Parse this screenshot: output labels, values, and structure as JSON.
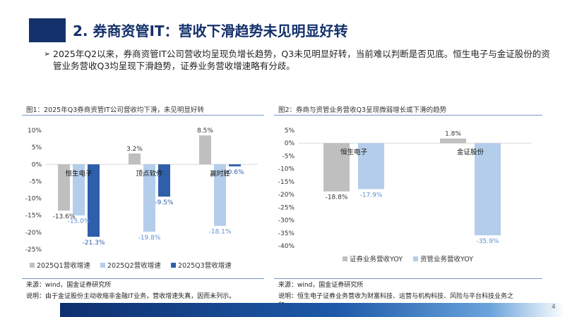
{
  "header": {
    "title": "2. 券商资管IT：营收下滑趋势未见明显好转",
    "bullet_marker": "➢",
    "bullet": "2025年Q2以来，券商资管IT公司营收均呈现负增长趋势，Q3未见明显好转，当前难以判断是否见底。恒生电子与金证股份的资管业务营收Q3均呈现下滑趋势，证券业务营收增速略有分歧。"
  },
  "figure1": {
    "caption": "图1：2025年Q3券商资管IT公司营收均下滑，未见明显好转",
    "source": "来源：wind，国金证券研究所",
    "note": "说明：由于金证股份主动收缩非金融IT业务，营收增速失真，因而未列示。"
  },
  "figure2": {
    "caption": "图2：券商与资管业务营收Q3呈现微弱增长或下滑的趋势",
    "source": "来源：wind，国金证券研究所",
    "note": "说明：恒生电子证券业务营收为财富科技、运营与机构科技、风险与平台科技业务之和。"
  },
  "page_number": "4",
  "chart_data": [
    {
      "type": "bar",
      "categories": [
        "恒生电子",
        "顶点软件",
        "赢时胜"
      ],
      "series": [
        {
          "name": "2025Q1营收增速",
          "values": [
            -13.6,
            3.2,
            8.5
          ],
          "labels": [
            "-13.6%",
            "3.2%",
            "8.5%"
          ],
          "color": "#bfbfbf"
        },
        {
          "name": "2025Q2营收增速",
          "values": [
            -15.0,
            -19.8,
            -18.1
          ],
          "labels": [
            "-15.0%",
            "-19.8%",
            "-18.1%"
          ],
          "color": "#b4cdea"
        },
        {
          "name": "2025Q3营收增速",
          "values": [
            -21.3,
            -9.5,
            -0.6
          ],
          "labels": [
            "-21.3%",
            "-9.5%",
            "-0.6%"
          ],
          "color": "#2e5faa"
        }
      ],
      "yticks": [
        "10%",
        "5%",
        "0%",
        "-5%",
        "-10%",
        "-15%",
        "-20%",
        "-25%"
      ],
      "ylim": [
        -25,
        10
      ],
      "legend_position": "bottom"
    },
    {
      "type": "bar",
      "categories": [
        "恒生电子",
        "金证股份"
      ],
      "series": [
        {
          "name": "证券业务营收YOY",
          "values": [
            -18.8,
            1.8
          ],
          "labels": [
            "-18.8%",
            "1.8%"
          ],
          "color": "#bfbfbf"
        },
        {
          "name": "资管业务营收YOY",
          "values": [
            -17.9,
            -35.9
          ],
          "labels": [
            "-17.9%",
            "-35.9%"
          ],
          "color": "#b4cdea"
        }
      ],
      "yticks": [
        "5%",
        "0%",
        "-5%",
        "-10%",
        "-15%",
        "-20%",
        "-25%",
        "-30%",
        "-35%",
        "-40%"
      ],
      "ylim": [
        -40,
        5
      ],
      "legend_position": "bottom"
    }
  ]
}
